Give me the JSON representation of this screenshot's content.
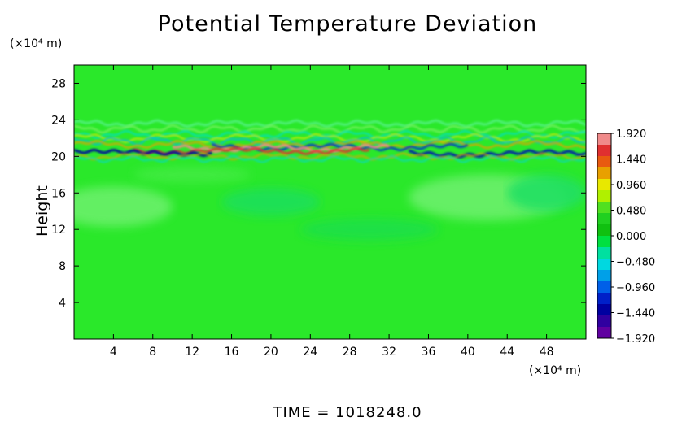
{
  "chart_data": {
    "type": "heatmap",
    "title": "Potential Temperature Deviation",
    "ylabel": "Height",
    "y_unit": "(×10⁴ m)",
    "x_unit": "(×10⁴ m)",
    "xlim": [
      0,
      52
    ],
    "ylim": [
      0,
      30
    ],
    "x_ticks": [
      4,
      8,
      12,
      16,
      20,
      24,
      28,
      32,
      36,
      40,
      44,
      48
    ],
    "y_ticks": [
      4,
      8,
      12,
      16,
      20,
      24,
      28
    ],
    "colorbar": {
      "range": [
        -1.92,
        1.92
      ],
      "tick_labels": [
        "1.920",
        "1.440",
        "0.960",
        "0.480",
        "0.000",
        "−0.480",
        "−0.960",
        "−1.440",
        "−1.920"
      ],
      "colors_top_to_bottom": [
        "#f08a8a",
        "#e03030",
        "#e85a10",
        "#e8a000",
        "#e8e800",
        "#b0f000",
        "#50e020",
        "#20d020",
        "#10c010",
        "#00e040",
        "#00e0a0",
        "#00d8e0",
        "#00a0e8",
        "#0060e8",
        "#0020c8",
        "#0000a0",
        "#3000a0",
        "#6000a0"
      ]
    },
    "background_value": 0.0,
    "features": [
      {
        "label": "strong deviation band",
        "y_range": [
          19.5,
          21.5
        ]
      },
      {
        "label": "weak wave band",
        "y_range": [
          21.5,
          24.5
        ]
      }
    ]
  },
  "footer": {
    "time_label": "TIME  =  1018248.0"
  }
}
